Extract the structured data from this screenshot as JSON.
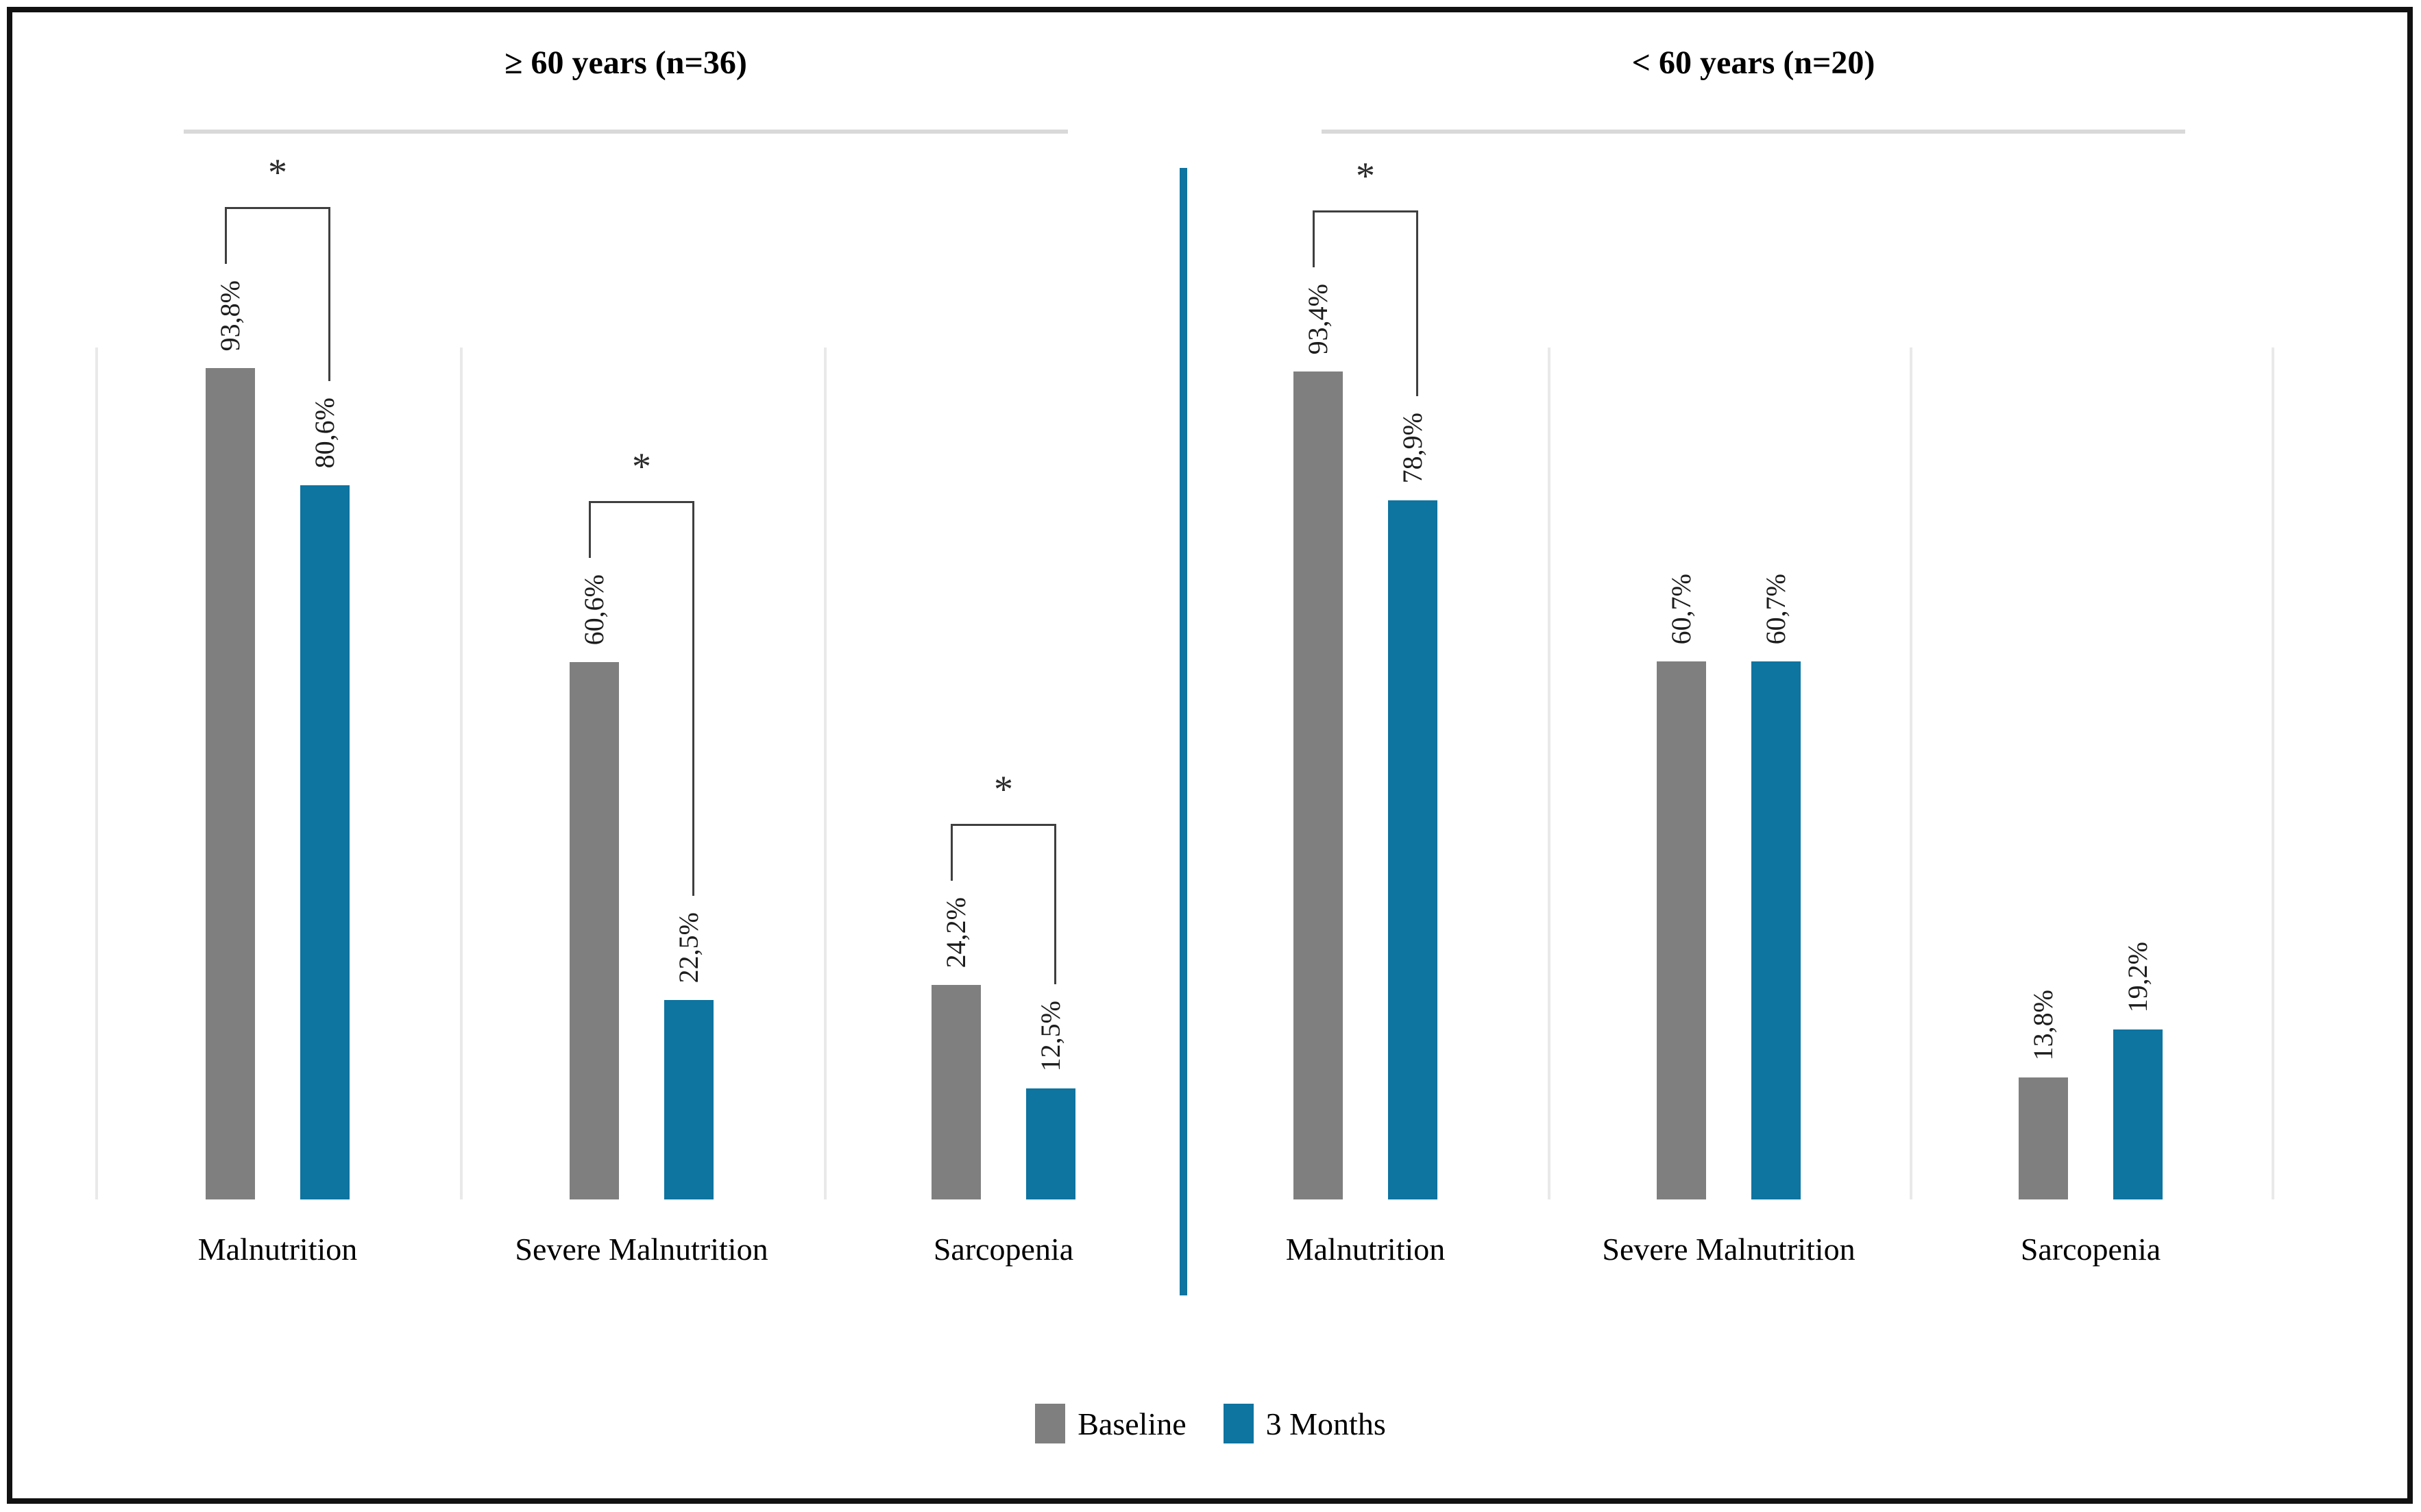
{
  "chart_data": {
    "type": "bar",
    "value_unit": "%",
    "ylim": [
      0,
      100
    ],
    "decimal_separator": ",",
    "grid": "vertical category separator lines only, no y-axis",
    "legend_position": "bottom-center",
    "significance_marker": "*",
    "legend": [
      {
        "label": "Baseline",
        "color": "#7f7f7f"
      },
      {
        "label": "3 Months",
        "color": "#0e74a0"
      }
    ],
    "panels": [
      {
        "title": "≥ 60 years (n=36)",
        "categories": [
          "Malnutrition",
          "Severe Malnutrition",
          "Sarcopenia"
        ],
        "series": [
          {
            "name": "Baseline",
            "values": [
              93.8,
              60.6,
              24.2
            ],
            "labels": [
              "93,8%",
              "60,6%",
              "24,2%"
            ]
          },
          {
            "name": "3 Months",
            "values": [
              80.6,
              22.5,
              12.5
            ],
            "labels": [
              "80,6%",
              "22,5%",
              "12,5%"
            ]
          }
        ],
        "significant_pairs": [
          true,
          true,
          true
        ]
      },
      {
        "title": "< 60 years (n=20)",
        "categories": [
          "Malnutrition",
          "Severe Malnutrition",
          "Sarcopenia"
        ],
        "series": [
          {
            "name": "Baseline",
            "values": [
              93.4,
              60.7,
              13.8
            ],
            "labels": [
              "93,4%",
              "60,7%",
              "13,8%"
            ]
          },
          {
            "name": "3 Months",
            "values": [
              78.9,
              60.7,
              19.2
            ],
            "labels": [
              "78,9%",
              "60,7%",
              "19,2%"
            ]
          }
        ],
        "significant_pairs": [
          true,
          false,
          false
        ]
      }
    ],
    "colors": {
      "baseline_bar": "#7f7f7f",
      "three_months_bar": "#0e74a0",
      "divider": "#0e74a0",
      "title_underline": "#d9d9d9",
      "separator": "#e9e9e9",
      "bracket": "#3f3f3f",
      "text": "#1a1a1a",
      "frame_border": "#111111"
    }
  }
}
